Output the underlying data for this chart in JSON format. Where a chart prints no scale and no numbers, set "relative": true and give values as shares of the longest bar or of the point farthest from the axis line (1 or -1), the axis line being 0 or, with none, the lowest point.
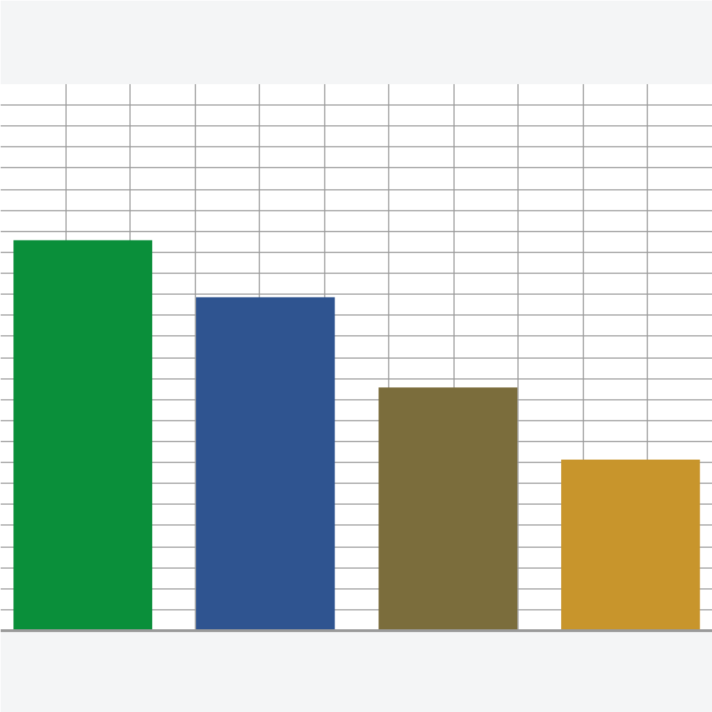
{
  "chart_data": {
    "type": "bar",
    "relative": true,
    "categories": [
      null,
      null,
      null,
      null
    ],
    "colors": [
      "#0a8f3a",
      "#2f5490",
      "#7b6d3c",
      "#c8952c"
    ],
    "values": [
      1,
      0.854,
      0.623,
      0.438
    ],
    "grid": true
  }
}
